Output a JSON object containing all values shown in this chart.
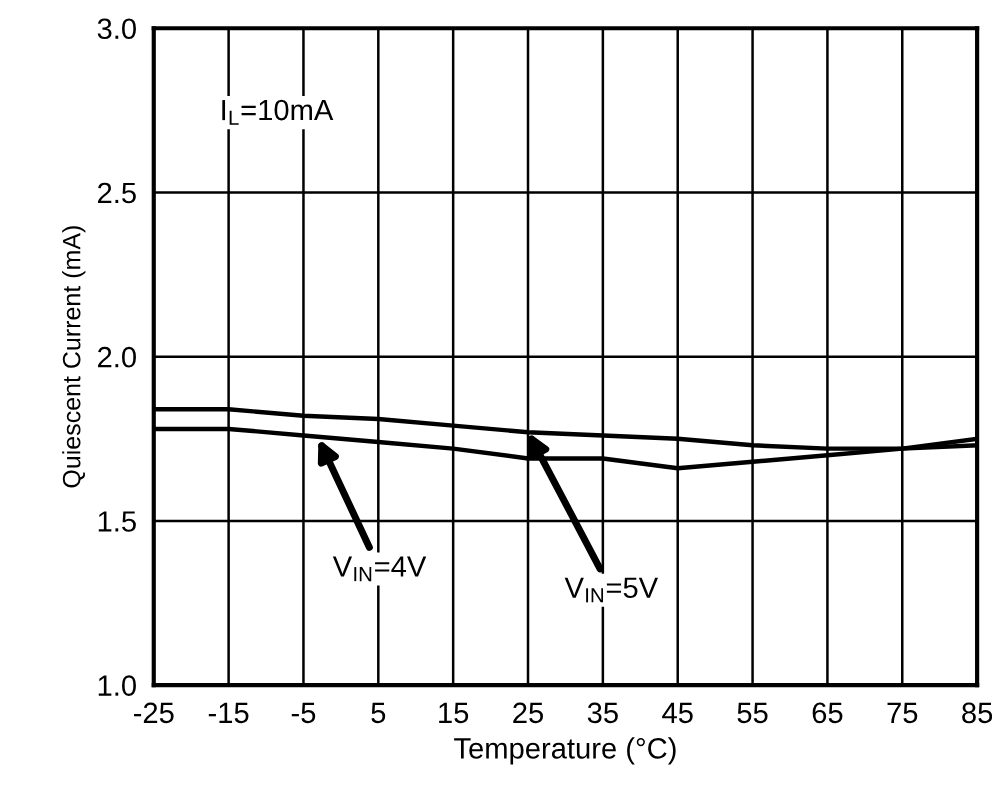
{
  "chart_data": {
    "type": "line",
    "xlabel": "Temperature (°C)",
    "ylabel": "Quiescent Current (mA)",
    "x": [
      -25,
      -15,
      -5,
      5,
      15,
      25,
      35,
      45,
      55,
      65,
      75,
      85
    ],
    "series": [
      {
        "color": "#000000",
        "values": [
          1.84,
          1.84,
          1.82,
          1.81,
          1.79,
          1.77,
          1.76,
          1.75,
          1.73,
          1.72,
          1.72,
          1.73
        ]
      },
      {
        "color": "#000000",
        "values": [
          1.78,
          1.78,
          1.76,
          1.74,
          1.72,
          1.69,
          1.69,
          1.66,
          1.68,
          1.7,
          1.72,
          1.75
        ]
      }
    ],
    "xlim": [
      -25,
      85
    ],
    "xticks": [
      -25,
      -15,
      -5,
      5,
      15,
      25,
      35,
      45,
      55,
      65,
      75,
      85
    ],
    "ylim": [
      1.0,
      3.0
    ],
    "yticks": [
      {
        "value": 1.0,
        "label": "1.0"
      },
      {
        "value": 1.5,
        "label": "1.5"
      },
      {
        "value": 2.0,
        "label": "2.0"
      },
      {
        "value": 2.5,
        "label": "2.5"
      },
      {
        "value": 3.0,
        "label": "3.0"
      }
    ],
    "grid": true,
    "legend": false,
    "marker": "none",
    "line_style": "solid",
    "annotations": [
      "I$_{L}$=10mA",
      {
        "text": "V$_{IN}$=4V",
        "x": -3,
        "y": 1.75
      },
      {
        "text": "V$_{IN}$=5V",
        "x": 25,
        "y": 1.77
      }
    ]
  }
}
